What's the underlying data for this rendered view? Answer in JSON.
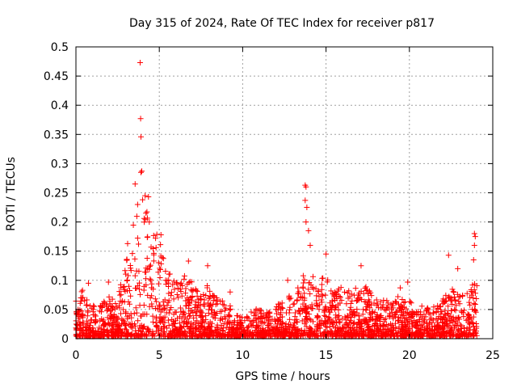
{
  "chart_data": {
    "type": "scatter",
    "title": "Day 315 of 2024, Rate Of TEC Index for receiver p817",
    "xlabel": "GPS time / hours",
    "ylabel": "ROTI / TECUs",
    "xlim": [
      0,
      25
    ],
    "ylim": [
      0,
      0.5
    ],
    "xticks": [
      0,
      5,
      10,
      15,
      20,
      25
    ],
    "yticks": [
      0,
      0.05,
      0.1,
      0.15,
      0.2,
      0.25,
      0.3,
      0.35,
      0.4,
      0.45,
      0.5
    ],
    "xtick_labels": [
      "0",
      "5",
      "10",
      "15",
      "20",
      "25"
    ],
    "ytick_labels": [
      "0",
      "0.05",
      "0.1",
      "0.15",
      "0.2",
      "0.25",
      "0.3",
      "0.35",
      "0.4",
      "0.45",
      "0.5"
    ],
    "grid": true,
    "marker": "+",
    "color": "#ff0000",
    "activity_profile": [
      {
        "x": 0.0,
        "amp": 0.07
      },
      {
        "x": 0.5,
        "amp": 0.08
      },
      {
        "x": 1.0,
        "amp": 0.06
      },
      {
        "x": 1.5,
        "amp": 0.05
      },
      {
        "x": 2.0,
        "amp": 0.07
      },
      {
        "x": 2.5,
        "amp": 0.06
      },
      {
        "x": 3.0,
        "amp": 0.13
      },
      {
        "x": 3.5,
        "amp": 0.19
      },
      {
        "x": 4.0,
        "amp": 0.22
      },
      {
        "x": 4.5,
        "amp": 0.19
      },
      {
        "x": 5.0,
        "amp": 0.16
      },
      {
        "x": 5.5,
        "amp": 0.11
      },
      {
        "x": 6.0,
        "amp": 0.09
      },
      {
        "x": 6.5,
        "amp": 0.1
      },
      {
        "x": 7.0,
        "amp": 0.09
      },
      {
        "x": 7.5,
        "amp": 0.07
      },
      {
        "x": 8.0,
        "amp": 0.09
      },
      {
        "x": 8.5,
        "amp": 0.06
      },
      {
        "x": 9.0,
        "amp": 0.06
      },
      {
        "x": 9.5,
        "amp": 0.04
      },
      {
        "x": 10.0,
        "amp": 0.03
      },
      {
        "x": 10.5,
        "amp": 0.04
      },
      {
        "x": 11.0,
        "amp": 0.05
      },
      {
        "x": 11.5,
        "amp": 0.04
      },
      {
        "x": 12.0,
        "amp": 0.05
      },
      {
        "x": 12.5,
        "amp": 0.06
      },
      {
        "x": 13.0,
        "amp": 0.07
      },
      {
        "x": 13.5,
        "amp": 0.09
      },
      {
        "x": 13.8,
        "amp": 0.16
      },
      {
        "x": 14.2,
        "amp": 0.1
      },
      {
        "x": 14.5,
        "amp": 0.09
      },
      {
        "x": 15.0,
        "amp": 0.1
      },
      {
        "x": 15.5,
        "amp": 0.08
      },
      {
        "x": 16.0,
        "amp": 0.08
      },
      {
        "x": 16.5,
        "amp": 0.08
      },
      {
        "x": 17.0,
        "amp": 0.09
      },
      {
        "x": 17.5,
        "amp": 0.08
      },
      {
        "x": 18.0,
        "amp": 0.06
      },
      {
        "x": 18.5,
        "amp": 0.06
      },
      {
        "x": 19.0,
        "amp": 0.06
      },
      {
        "x": 19.5,
        "amp": 0.07
      },
      {
        "x": 20.0,
        "amp": 0.06
      },
      {
        "x": 20.5,
        "amp": 0.05
      },
      {
        "x": 21.0,
        "amp": 0.05
      },
      {
        "x": 21.5,
        "amp": 0.05
      },
      {
        "x": 22.0,
        "amp": 0.06
      },
      {
        "x": 22.5,
        "amp": 0.08
      },
      {
        "x": 23.0,
        "amp": 0.07
      },
      {
        "x": 23.5,
        "amp": 0.07
      },
      {
        "x": 24.0,
        "amp": 0.1
      }
    ],
    "notable_points": [
      {
        "x": 3.85,
        "y": 0.473
      },
      {
        "x": 3.88,
        "y": 0.377
      },
      {
        "x": 3.9,
        "y": 0.346
      },
      {
        "x": 3.95,
        "y": 0.287
      },
      {
        "x": 3.9,
        "y": 0.285
      },
      {
        "x": 3.55,
        "y": 0.265
      },
      {
        "x": 4.15,
        "y": 0.245
      },
      {
        "x": 4.35,
        "y": 0.243
      },
      {
        "x": 4.0,
        "y": 0.238
      },
      {
        "x": 4.4,
        "y": 0.2
      },
      {
        "x": 4.2,
        "y": 0.215
      },
      {
        "x": 3.7,
        "y": 0.23
      },
      {
        "x": 13.75,
        "y": 0.263
      },
      {
        "x": 13.8,
        "y": 0.26
      },
      {
        "x": 13.75,
        "y": 0.237
      },
      {
        "x": 13.85,
        "y": 0.225
      },
      {
        "x": 13.8,
        "y": 0.2
      },
      {
        "x": 13.95,
        "y": 0.185
      },
      {
        "x": 14.05,
        "y": 0.16
      },
      {
        "x": 15.0,
        "y": 0.145
      },
      {
        "x": 17.1,
        "y": 0.125
      },
      {
        "x": 22.35,
        "y": 0.143
      },
      {
        "x": 22.9,
        "y": 0.12
      },
      {
        "x": 23.9,
        "y": 0.18
      },
      {
        "x": 23.95,
        "y": 0.175
      },
      {
        "x": 23.9,
        "y": 0.16
      },
      {
        "x": 23.85,
        "y": 0.135
      },
      {
        "x": 6.75,
        "y": 0.133
      },
      {
        "x": 7.9,
        "y": 0.125
      },
      {
        "x": 3.1,
        "y": 0.163
      },
      {
        "x": 5.1,
        "y": 0.178
      },
      {
        "x": 0.75,
        "y": 0.095
      },
      {
        "x": 1.95,
        "y": 0.097
      },
      {
        "x": 9.25,
        "y": 0.08
      },
      {
        "x": 12.7,
        "y": 0.1
      },
      {
        "x": 19.45,
        "y": 0.087
      },
      {
        "x": 19.9,
        "y": 0.097
      }
    ]
  }
}
